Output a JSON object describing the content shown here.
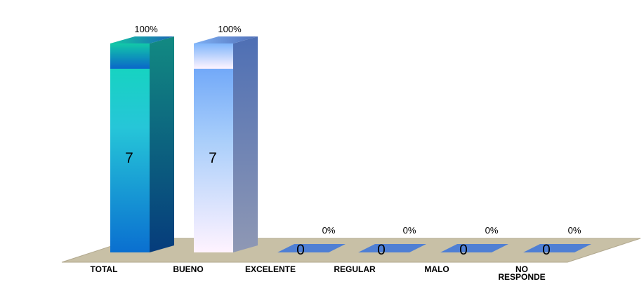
{
  "chart_data": {
    "type": "bar",
    "categories": [
      "TOTAL",
      "BUENO",
      "EXCELENTE",
      "REGULAR",
      "MALO",
      "NO RESPONDE"
    ],
    "category_lines": [
      [
        "TOTAL"
      ],
      [
        "BUENO"
      ],
      [
        "EXCELENTE"
      ],
      [
        "REGULAR"
      ],
      [
        "MALO"
      ],
      [
        "NO",
        "RESPONDE"
      ]
    ],
    "values": [
      7,
      7,
      0,
      0,
      0,
      0
    ],
    "percent_labels": [
      "100%",
      "100%",
      "0%",
      "0%",
      "0%",
      "0%"
    ],
    "ylim": [
      0,
      7
    ],
    "grid": false,
    "legend": "none",
    "colors": {
      "total_front_top": "#10d8b8",
      "total_front_mid": "#26c6d8",
      "total_front_bottom": "#0a6fd0",
      "total_side": "#0b5e74",
      "total_cap": "#1c9ec0",
      "bueno_front_top": "#5f9cf8",
      "bueno_front_bottom": "#fff3ff",
      "bueno_side": "#5b75b0",
      "bueno_cap": "#6a90d8",
      "zero_bar": "#4f7fd4",
      "floor": "#c8c0a6"
    }
  }
}
